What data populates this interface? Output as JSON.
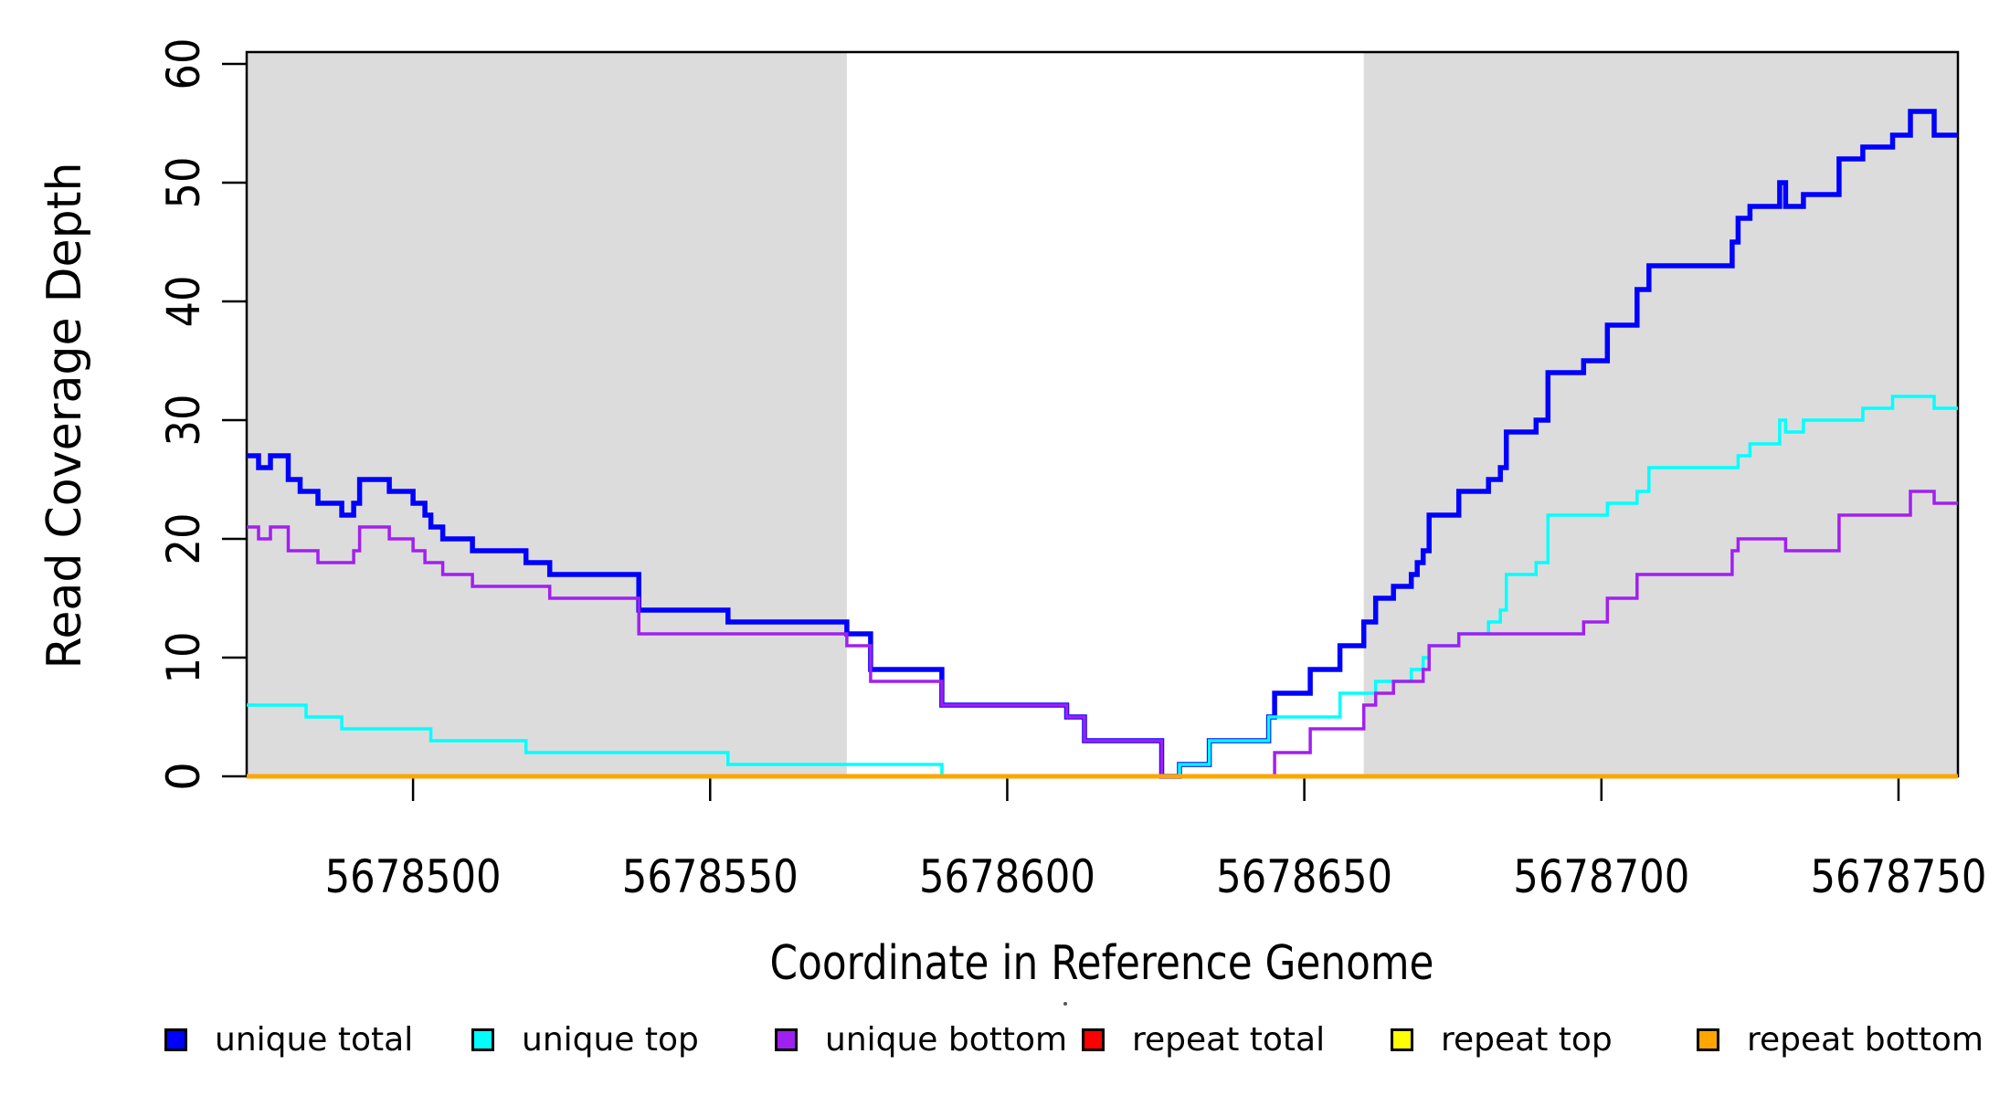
{
  "chart_data": {
    "type": "line",
    "subtype": "step-coverage",
    "title": "",
    "xlabel": "Coordinate in Reference Genome",
    "ylabel": "Read Coverage Depth",
    "xlim": [
      5678472,
      5678760
    ],
    "ylim": [
      0,
      61
    ],
    "x_ticks": [
      5678500,
      5678550,
      5678600,
      5678650,
      5678700,
      5678750
    ],
    "y_ticks": [
      0,
      10,
      20,
      30,
      40,
      50,
      60
    ],
    "grid": false,
    "legend_position": "bottom-horizontal",
    "shaded_regions": [
      {
        "x0": 5678472,
        "x1": 5678573,
        "color": "#DCDCDC"
      },
      {
        "x0": 5678660,
        "x1": 5678760,
        "color": "#DCDCDC"
      }
    ],
    "series": [
      {
        "name": "unique total",
        "color": "#0000FF",
        "width": 5.5,
        "steps": [
          [
            5678472,
            27
          ],
          [
            5678474,
            26
          ],
          [
            5678476,
            27
          ],
          [
            5678479,
            25
          ],
          [
            5678481,
            24
          ],
          [
            5678484,
            23
          ],
          [
            5678488,
            22
          ],
          [
            5678490,
            23
          ],
          [
            5678491,
            25
          ],
          [
            5678496,
            24
          ],
          [
            5678500,
            23
          ],
          [
            5678502,
            22
          ],
          [
            5678503,
            21
          ],
          [
            5678505,
            20
          ],
          [
            5678510,
            19
          ],
          [
            5678519,
            18
          ],
          [
            5678523,
            17
          ],
          [
            5678538,
            14
          ],
          [
            5678553,
            13
          ],
          [
            5678573,
            12
          ],
          [
            5678577,
            9
          ],
          [
            5678589,
            6
          ],
          [
            5678610,
            5
          ],
          [
            5678613,
            3
          ],
          [
            5678626,
            0
          ],
          [
            5678629,
            1
          ],
          [
            5678634,
            3
          ],
          [
            5678644,
            5
          ],
          [
            5678645,
            7
          ],
          [
            5678651,
            9
          ],
          [
            5678656,
            11
          ],
          [
            5678660,
            13
          ],
          [
            5678662,
            15
          ],
          [
            5678665,
            16
          ],
          [
            5678668,
            17
          ],
          [
            5678669,
            18
          ],
          [
            5678670,
            19
          ],
          [
            5678671,
            22
          ],
          [
            5678676,
            24
          ],
          [
            5678681,
            25
          ],
          [
            5678683,
            26
          ],
          [
            5678684,
            29
          ],
          [
            5678689,
            30
          ],
          [
            5678691,
            34
          ],
          [
            5678697,
            35
          ],
          [
            5678701,
            38
          ],
          [
            5678706,
            41
          ],
          [
            5678708,
            43
          ],
          [
            5678722,
            45
          ],
          [
            5678723,
            47
          ],
          [
            5678725,
            48
          ],
          [
            5678730,
            50
          ],
          [
            5678731,
            48
          ],
          [
            5678734,
            49
          ],
          [
            5678740,
            52
          ],
          [
            5678744,
            53
          ],
          [
            5678749,
            54
          ],
          [
            5678752,
            56
          ],
          [
            5678756,
            54
          ]
        ]
      },
      {
        "name": "unique top",
        "color": "#00FFFF",
        "width": 3.5,
        "steps": [
          [
            5678472,
            6
          ],
          [
            5678482,
            5
          ],
          [
            5678488,
            4
          ],
          [
            5678503,
            3
          ],
          [
            5678519,
            2
          ],
          [
            5678553,
            1
          ],
          [
            5678589,
            0
          ],
          [
            5678629,
            1
          ],
          [
            5678634,
            3
          ],
          [
            5678644,
            5
          ],
          [
            5678656,
            7
          ],
          [
            5678662,
            8
          ],
          [
            5678668,
            9
          ],
          [
            5678670,
            10
          ],
          [
            5678671,
            11
          ],
          [
            5678676,
            12
          ],
          [
            5678681,
            13
          ],
          [
            5678683,
            14
          ],
          [
            5678684,
            17
          ],
          [
            5678689,
            18
          ],
          [
            5678691,
            22
          ],
          [
            5678701,
            23
          ],
          [
            5678706,
            24
          ],
          [
            5678708,
            26
          ],
          [
            5678723,
            27
          ],
          [
            5678725,
            28
          ],
          [
            5678730,
            30
          ],
          [
            5678731,
            29
          ],
          [
            5678734,
            30
          ],
          [
            5678744,
            31
          ],
          [
            5678749,
            32
          ],
          [
            5678756,
            31
          ]
        ]
      },
      {
        "name": "unique bottom",
        "color": "#A020F0",
        "width": 3.5,
        "steps": [
          [
            5678472,
            21
          ],
          [
            5678474,
            20
          ],
          [
            5678476,
            21
          ],
          [
            5678479,
            19
          ],
          [
            5678484,
            18
          ],
          [
            5678490,
            19
          ],
          [
            5678491,
            21
          ],
          [
            5678496,
            20
          ],
          [
            5678500,
            19
          ],
          [
            5678502,
            18
          ],
          [
            5678505,
            17
          ],
          [
            5678510,
            16
          ],
          [
            5678523,
            15
          ],
          [
            5678538,
            12
          ],
          [
            5678573,
            11
          ],
          [
            5678577,
            8
          ],
          [
            5678589,
            6
          ],
          [
            5678610,
            5
          ],
          [
            5678613,
            3
          ],
          [
            5678626,
            0
          ],
          [
            5678645,
            2
          ],
          [
            5678651,
            4
          ],
          [
            5678660,
            6
          ],
          [
            5678662,
            7
          ],
          [
            5678665,
            8
          ],
          [
            5678670,
            9
          ],
          [
            5678671,
            11
          ],
          [
            5678676,
            12
          ],
          [
            5678697,
            13
          ],
          [
            5678701,
            15
          ],
          [
            5678706,
            17
          ],
          [
            5678722,
            19
          ],
          [
            5678723,
            20
          ],
          [
            5678731,
            19
          ],
          [
            5678740,
            22
          ],
          [
            5678752,
            24
          ],
          [
            5678756,
            23
          ]
        ]
      },
      {
        "name": "repeat total",
        "color": "#FF0000",
        "width": 3,
        "steps": [
          [
            5678472,
            0
          ]
        ]
      },
      {
        "name": "repeat top",
        "color": "#FFFF00",
        "width": 3,
        "steps": [
          [
            5678472,
            0
          ]
        ]
      },
      {
        "name": "repeat bottom",
        "color": "#FFA500",
        "width": 5,
        "steps": [
          [
            5678472,
            0
          ]
        ]
      }
    ]
  },
  "legend": {
    "swatch_border_color": "#000000"
  }
}
